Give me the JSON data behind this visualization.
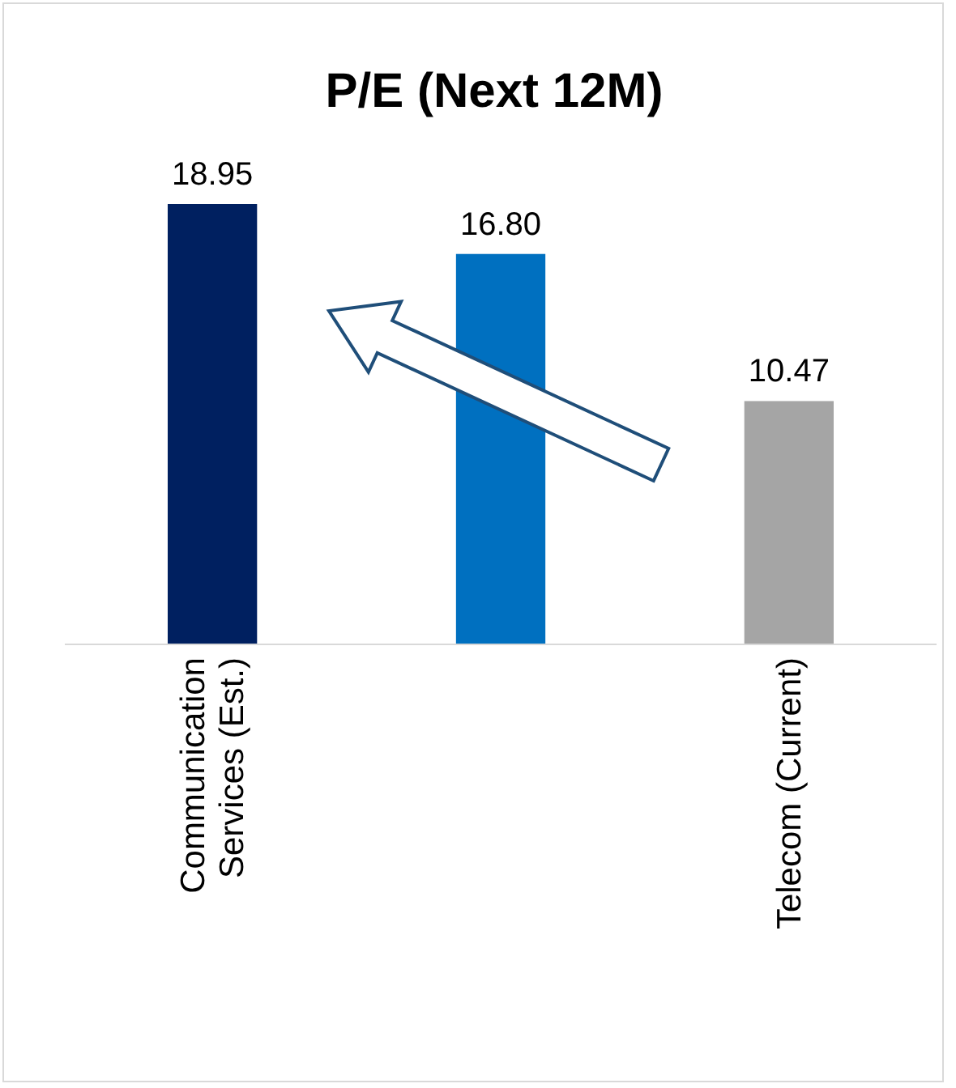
{
  "chart_data": {
    "type": "bar",
    "title": "P/E (Next 12M)",
    "categories": [
      "Communication Services (Est.)",
      null,
      "Telecom (Current)"
    ],
    "values": [
      18.95,
      16.8,
      10.47
    ],
    "value_labels": [
      "18.95",
      "16.80",
      "10.47"
    ],
    "colors": [
      "#002060",
      "#0070c0",
      "#a5a5a5"
    ]
  }
}
